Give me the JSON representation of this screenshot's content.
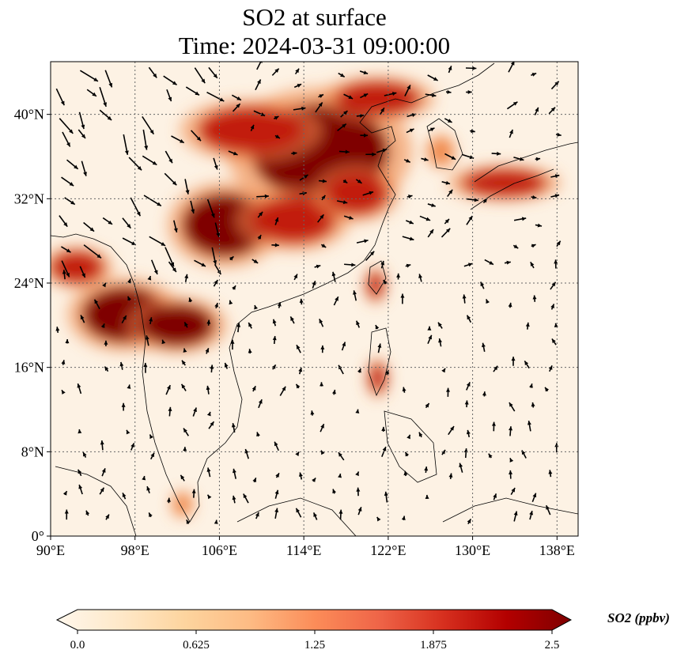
{
  "title_line1": "SO2 at surface",
  "title_line2": "Time: 2024-03-31 09:00:00",
  "map": {
    "lon_range": [
      90,
      140
    ],
    "lat_range": [
      0,
      45
    ],
    "lon_ticks": [
      {
        "value": 90,
        "label": "90°E"
      },
      {
        "value": 98,
        "label": "98°E"
      },
      {
        "value": 106,
        "label": "106°E"
      },
      {
        "value": 114,
        "label": "114°E"
      },
      {
        "value": 122,
        "label": "122°E"
      },
      {
        "value": 130,
        "label": "130°E"
      },
      {
        "value": 138,
        "label": "138°E"
      }
    ],
    "lat_ticks": [
      {
        "value": 0,
        "label": "0°"
      },
      {
        "value": 8,
        "label": "8°N"
      },
      {
        "value": 16,
        "label": "16°N"
      },
      {
        "value": 24,
        "label": "24°N"
      },
      {
        "value": 32,
        "label": "32°N"
      },
      {
        "value": 40,
        "label": "40°N"
      }
    ],
    "gridlines": true,
    "field_colors": {
      "background": "#fdf2e4",
      "low": "#fdd9ae",
      "mid": "#f08a4d",
      "high": "#c21b0e",
      "max": "#7f0000"
    },
    "pollution_regions": [
      {
        "name": "north-china-plain",
        "lon": 115.5,
        "lat": 36.5,
        "rx": 6.5,
        "ry": 4.5,
        "level": "max"
      },
      {
        "name": "inner-north",
        "lon": 109,
        "lat": 38.5,
        "rx": 5,
        "ry": 2.2,
        "level": "high"
      },
      {
        "name": "sichuan-basin",
        "lon": 106.5,
        "lat": 29.5,
        "rx": 4,
        "ry": 3,
        "level": "max"
      },
      {
        "name": "hubei-hunan",
        "lon": 113,
        "lat": 30,
        "rx": 4,
        "ry": 2.2,
        "level": "high"
      },
      {
        "name": "yangtze-delta",
        "lon": 119,
        "lat": 32.5,
        "rx": 3,
        "ry": 2,
        "level": "high"
      },
      {
        "name": "northeast-china",
        "lon": 121,
        "lat": 41.5,
        "rx": 4,
        "ry": 1.6,
        "level": "high"
      },
      {
        "name": "myanmar-thailand",
        "lon": 97,
        "lat": 21,
        "rx": 4,
        "ry": 2.6,
        "level": "max"
      },
      {
        "name": "laos-vietnam",
        "lon": 102,
        "lat": 20,
        "rx": 3.5,
        "ry": 2,
        "level": "max"
      },
      {
        "name": "northeast-india",
        "lon": 92.5,
        "lat": 25.5,
        "rx": 2.5,
        "ry": 1.5,
        "level": "high"
      },
      {
        "name": "japan",
        "lon": 133,
        "lat": 33.5,
        "rx": 4,
        "ry": 1.3,
        "level": "high"
      },
      {
        "name": "korea",
        "lon": 127,
        "lat": 36.5,
        "rx": 1.3,
        "ry": 1.5,
        "level": "mid"
      },
      {
        "name": "taiwan",
        "lon": 120.8,
        "lat": 23.8,
        "rx": 0.8,
        "ry": 1.3,
        "level": "high"
      },
      {
        "name": "luzon",
        "lon": 121,
        "lat": 15,
        "rx": 0.8,
        "ry": 1.4,
        "level": "high"
      },
      {
        "name": "malay-peninsula",
        "lon": 102.5,
        "lat": 3,
        "rx": 1,
        "ry": 1.2,
        "level": "mid"
      }
    ]
  },
  "colorbar": {
    "label": "SO2 (ppbv)",
    "ticks": [
      {
        "value": 0.0,
        "label": "0.0"
      },
      {
        "value": 0.625,
        "label": "0.625"
      },
      {
        "value": 1.25,
        "label": "1.25"
      },
      {
        "value": 1.875,
        "label": "1.875"
      },
      {
        "value": 2.5,
        "label": "2.5"
      }
    ],
    "min": 0.0,
    "max": 2.5,
    "extend": "both",
    "colors": [
      "#fff7ec",
      "#fee8c8",
      "#fdd49e",
      "#fdbb84",
      "#fc8d59",
      "#ef6548",
      "#d7301f",
      "#b30000",
      "#7f0000"
    ]
  }
}
